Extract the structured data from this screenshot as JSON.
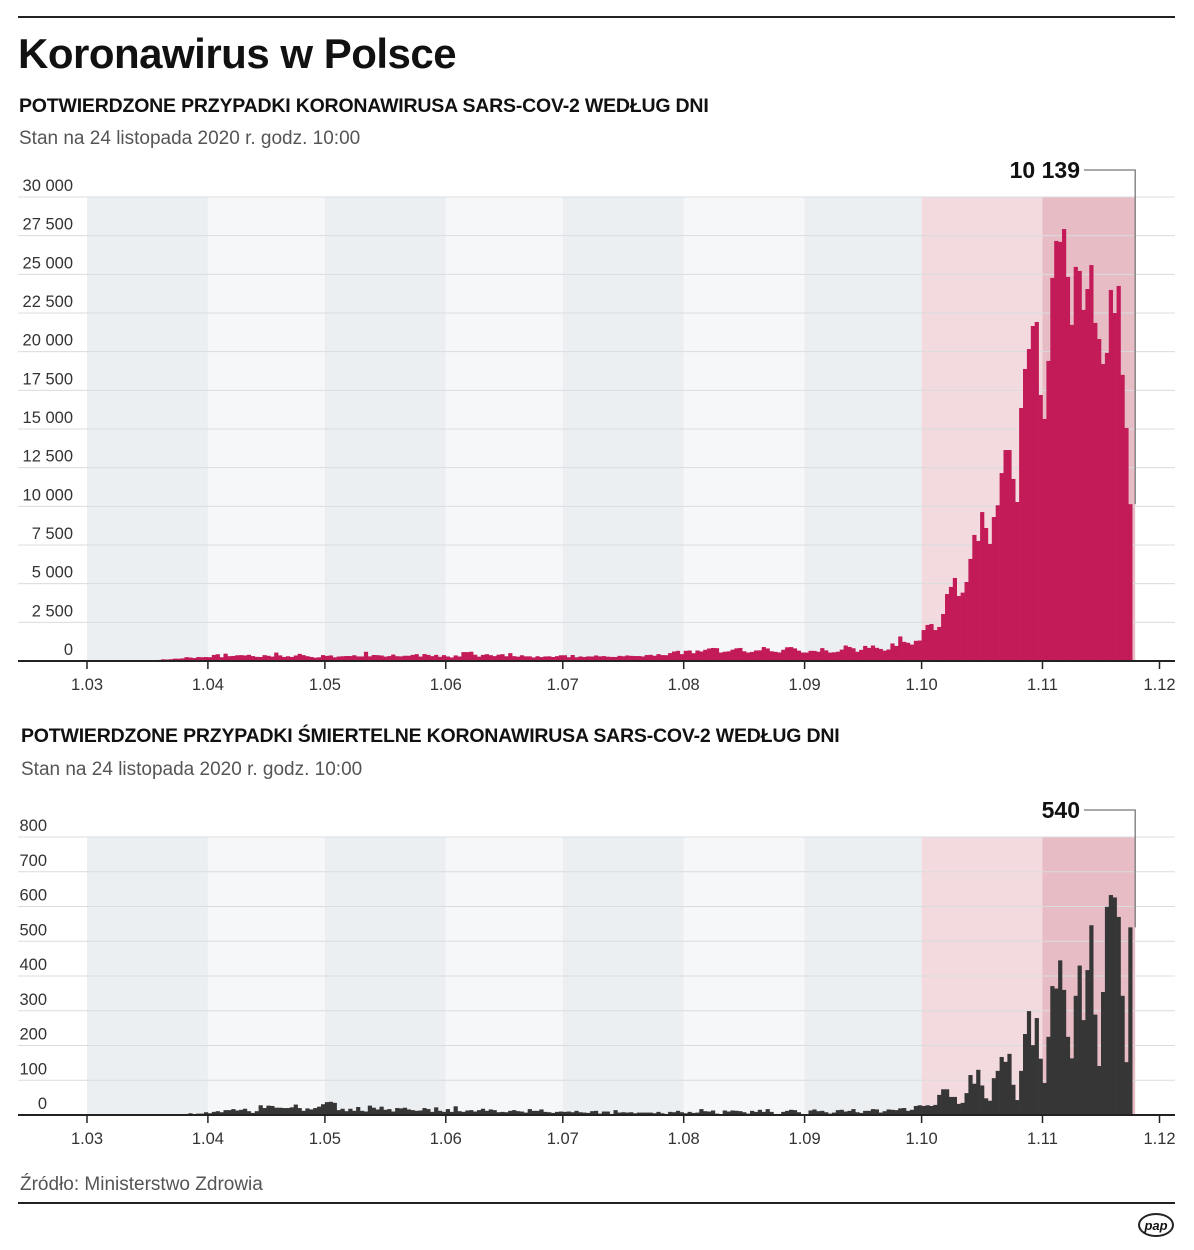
{
  "header": {
    "title": "Koronawirus w Polsce",
    "source": "Źródło: Ministerstwo Zdrowia",
    "logo": "pap"
  },
  "colors": {
    "cases_bar": "#c21b58",
    "deaths_bar": "#363636",
    "band_dark": "#eceff2",
    "band_light": "#f6f7f9",
    "band_october": "#f3dadf",
    "band_november": "#e8bcc5"
  },
  "chart_data": [
    {
      "type": "bar",
      "title": "POTWIERDZONE PRZYPADKI KORONAWIRUSA SARS-COV-2 WEDŁUG DNI",
      "subtitle": "Stan na 24 listopada 2020 r. godz. 10:00",
      "x_start": "2020-03-04",
      "x_tick_labels": [
        "1.03",
        "1.04",
        "1.05",
        "1.06",
        "1.07",
        "1.08",
        "1.09",
        "1.10",
        "1.11",
        "1.12"
      ],
      "y_tick_labels": [
        "0",
        "2 500",
        "5 000",
        "7 500",
        "10 000",
        "12 500",
        "15 000",
        "17 500",
        "20 000",
        "22 500",
        "25 000",
        "27 500",
        "30 000"
      ],
      "ylim": [
        0,
        30000
      ],
      "y_step": 2500,
      "grid": true,
      "highlight_label": "10 139",
      "values": [
        1,
        0,
        4,
        1,
        5,
        6,
        5,
        9,
        19,
        17,
        36,
        52,
        27,
        55,
        49,
        70,
        111,
        98,
        115,
        152,
        150,
        170,
        249,
        224,
        193,
        256,
        243,
        256,
        244,
        392,
        437,
        244,
        475,
        311,
        325,
        370,
        380,
        357,
        401,
        318,
        268,
        260,
        380,
        336,
        285,
        545,
        363,
        263,
        306,
        263,
        356,
        462,
        380,
        311,
        263,
        216,
        241,
        381,
        330,
        360,
        239,
        291,
        307,
        325,
        319,
        371,
        297,
        294,
        595,
        300,
        387,
        378,
        356,
        285,
        318,
        417,
        310,
        299,
        340,
        339,
        395,
        443,
        287,
        450,
        395,
        314,
        396,
        271,
        379,
        292,
        230,
        361,
        292,
        576,
        575,
        599,
        407,
        282,
        395,
        440,
        376,
        314,
        407,
        440,
        306,
        506,
        314,
        280,
        371,
        301,
        300,
        232,
        308,
        253,
        295,
        302,
        260,
        313,
        371,
        371,
        244,
        389,
        243,
        294,
        262,
        299,
        290,
        358,
        299,
        318,
        279,
        264,
        260,
        332,
        305,
        358,
        334,
        322,
        320,
        294,
        386,
        399,
        337,
        443,
        382,
        376,
        512,
        615,
        657,
        443,
        658,
        680,
        503,
        680,
        617,
        726,
        809,
        843,
        832,
        548,
        601,
        624,
        735,
        819,
        843,
        631,
        548,
        587,
        681,
        690,
        903,
        811,
        631,
        596,
        554,
        728,
        887,
        900,
        815,
        671,
        550,
        547,
        658,
        654,
        601,
        834,
        686,
        544,
        563,
        600,
        736,
        1002,
        909,
        825,
        598,
        721,
        975,
        848,
        1002,
        852,
        779,
        669,
        744,
        1136,
        974,
        1587,
        1236,
        1178,
        1060,
        1306,
        1326,
        2000,
        2330,
        2390,
        2000,
        2200,
        3040,
        4330,
        4790,
        5370,
        4200,
        4420,
        5110,
        6600,
        8150,
        7760,
        9630,
        8600,
        7570,
        9310,
        10070,
        12150,
        13640,
        13640,
        11770,
        10280,
        16360,
        18880,
        20170,
        21660,
        21920,
        17200,
        15650,
        19400,
        24770,
        27160,
        27100,
        27930,
        24830,
        21730,
        25480,
        25220,
        22700,
        24050,
        25600,
        21860,
        20820,
        19200,
        19920,
        23990,
        22500,
        24250,
        18500,
        15070,
        10139
      ]
    },
    {
      "type": "bar",
      "title": "POTWIERDZONE PRZYPADKI ŚMIERTELNE KORONAWIRUSA SARS-COV-2 WEDŁUG DNI",
      "subtitle": "Stan na 24 listopada 2020 r. godz. 10:00",
      "x_start": "2020-03-04",
      "x_tick_labels": [
        "1.03",
        "1.04",
        "1.05",
        "1.06",
        "1.07",
        "1.08",
        "1.09",
        "1.10",
        "1.11",
        "1.12"
      ],
      "y_tick_labels": [
        "0",
        "100",
        "200",
        "300",
        "400",
        "500",
        "600",
        "700",
        "800"
      ],
      "ylim": [
        0,
        800
      ],
      "y_step": 100,
      "grid": true,
      "highlight_label": "540",
      "values": [
        0,
        0,
        0,
        0,
        0,
        0,
        0,
        0,
        1,
        1,
        1,
        0,
        0,
        1,
        1,
        2,
        2,
        0,
        2,
        1,
        2,
        2,
        3,
        5,
        2,
        4,
        4,
        8,
        5,
        9,
        11,
        8,
        14,
        14,
        17,
        13,
        15,
        18,
        11,
        6,
        11,
        28,
        20,
        27,
        26,
        21,
        21,
        20,
        20,
        22,
        30,
        20,
        12,
        19,
        16,
        20,
        24,
        31,
        37,
        38,
        35,
        14,
        18,
        11,
        18,
        12,
        23,
        12,
        10,
        27,
        21,
        16,
        24,
        15,
        17,
        10,
        20,
        19,
        21,
        16,
        14,
        12,
        13,
        20,
        17,
        9,
        22,
        12,
        9,
        17,
        9,
        25,
        11,
        9,
        13,
        14,
        10,
        14,
        18,
        12,
        16,
        14,
        8,
        9,
        8,
        12,
        14,
        11,
        10,
        7,
        17,
        12,
        12,
        16,
        9,
        8,
        6,
        9,
        10,
        9,
        10,
        8,
        12,
        8,
        7,
        6,
        11,
        12,
        4,
        10,
        10,
        3,
        14,
        7,
        8,
        7,
        8,
        5,
        7,
        7,
        7,
        7,
        5,
        9,
        5,
        3,
        9,
        8,
        12,
        8,
        5,
        9,
        6,
        7,
        17,
        11,
        10,
        13,
        4,
        2,
        13,
        10,
        13,
        12,
        11,
        8,
        4,
        12,
        9,
        15,
        9,
        17,
        9,
        3,
        3,
        9,
        12,
        15,
        14,
        8,
        3,
        2,
        13,
        16,
        11,
        12,
        8,
        4,
        7,
        14,
        15,
        10,
        12,
        17,
        8,
        6,
        12,
        12,
        17,
        16,
        7,
        11,
        16,
        15,
        14,
        19,
        20,
        12,
        15,
        26,
        28,
        26,
        28,
        26,
        29,
        58,
        74,
        74,
        52,
        52,
        32,
        35,
        63,
        115,
        90,
        130,
        85,
        48,
        41,
        106,
        127,
        167,
        153,
        176,
        87,
        43,
        127,
        233,
        299,
        201,
        279,
        162,
        92,
        225,
        371,
        364,
        445,
        360,
        225,
        163,
        343,
        430,
        273,
        417,
        546,
        289,
        141,
        354,
        599,
        633,
        626,
        570,
        343,
        152,
        540
      ]
    }
  ]
}
